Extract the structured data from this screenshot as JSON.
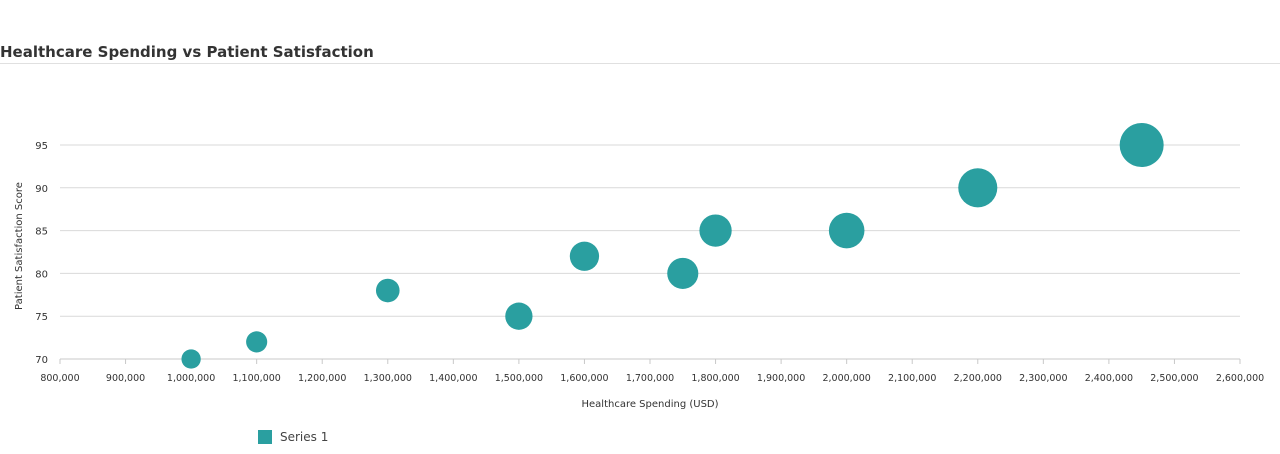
{
  "chart_data": {
    "type": "bubble",
    "title": "Healthcare Spending vs Patient Satisfaction",
    "xlabel": "Healthcare Spending (USD)",
    "ylabel": "Patient Satisfaction Score",
    "xlim": [
      800000,
      2600000
    ],
    "ylim": [
      70,
      95
    ],
    "x_ticks": [
      800000,
      900000,
      1000000,
      1100000,
      1200000,
      1300000,
      1400000,
      1500000,
      1600000,
      1700000,
      1800000,
      1900000,
      2000000,
      2100000,
      2200000,
      2300000,
      2400000,
      2500000,
      2600000
    ],
    "y_ticks": [
      70,
      75,
      80,
      85,
      90,
      95
    ],
    "grid": "horizontal",
    "legend": "bottom-left",
    "series": [
      {
        "name": "Series 1",
        "color": "#2a9fa0",
        "points": [
          {
            "x": 1000000,
            "y": 70,
            "size": 1
          },
          {
            "x": 1100000,
            "y": 72,
            "size": 1.2
          },
          {
            "x": 1300000,
            "y": 78,
            "size": 1.5
          },
          {
            "x": 1500000,
            "y": 75,
            "size": 2
          },
          {
            "x": 1600000,
            "y": 82,
            "size": 2.3
          },
          {
            "x": 1750000,
            "y": 80,
            "size": 2.6
          },
          {
            "x": 1800000,
            "y": 85,
            "size": 2.8
          },
          {
            "x": 2000000,
            "y": 85,
            "size": 3.4
          },
          {
            "x": 2200000,
            "y": 90,
            "size": 4.1
          },
          {
            "x": 2450000,
            "y": 95,
            "size": 5.2
          }
        ]
      }
    ]
  }
}
